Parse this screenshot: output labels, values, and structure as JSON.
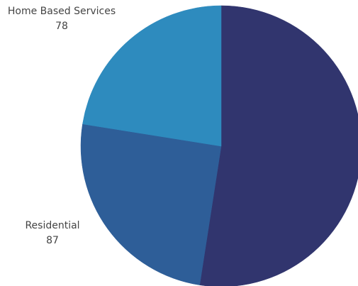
{
  "chart_data": {
    "type": "pie",
    "title": "",
    "slices": [
      {
        "label": "",
        "value": 182,
        "color": "#31356e"
      },
      {
        "label": "Residential",
        "value": 87,
        "color": "#2e5e98"
      },
      {
        "label": "Home Based Services",
        "value": 78,
        "color": "#2e8bbe"
      }
    ],
    "visible_labels": [
      {
        "name": "Home Based Services",
        "value": "78"
      },
      {
        "name": "Residential",
        "value": "87"
      }
    ]
  }
}
